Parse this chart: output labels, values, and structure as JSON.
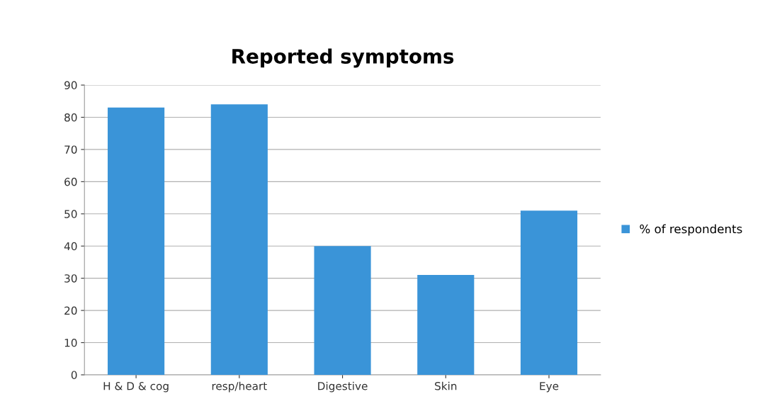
{
  "chart_data": {
    "type": "bar",
    "title": "Reported symptoms",
    "categories": [
      "H & D & cog",
      "resp/heart",
      "Digestive",
      "Skin",
      "Eye"
    ],
    "series": [
      {
        "name": "% of respondents",
        "color": "#3a94d8",
        "values": [
          83,
          84,
          40,
          31,
          51
        ]
      }
    ],
    "ylim": [
      0,
      90
    ],
    "yticks": [
      0,
      10,
      20,
      30,
      40,
      50,
      60,
      70,
      80,
      90
    ],
    "grid": "y",
    "legend": "right"
  }
}
